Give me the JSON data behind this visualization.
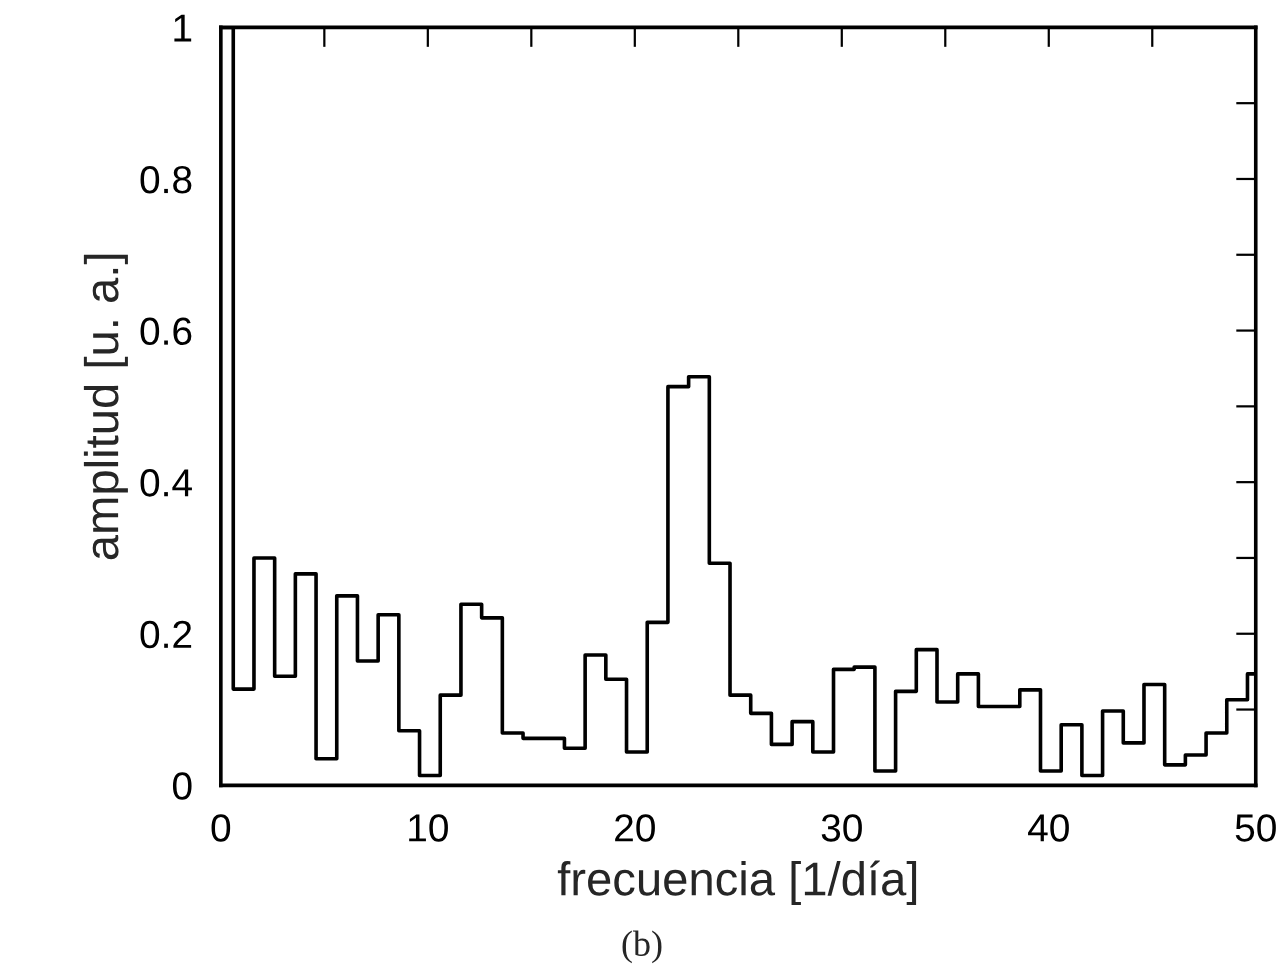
{
  "chart_data": {
    "type": "step",
    "xlabel": "frecuencia [1/día]",
    "ylabel": "amplitud [u. a.]",
    "annotations": [
      "(b)"
    ],
    "x": [
      0,
      0.6,
      1.6,
      2.6,
      3.6,
      4.6,
      5.6,
      6.6,
      7.6,
      8.6,
      9.6,
      10.6,
      11.6,
      12.6,
      13.6,
      14.6,
      15.6,
      16.6,
      17.6,
      18.6,
      19.6,
      20.6,
      21.6,
      22.6,
      23.6,
      24.6,
      25.6,
      26.6,
      27.6,
      28.6,
      29.6,
      30.6,
      31.6,
      32.6,
      33.6,
      34.6,
      35.6,
      36.6,
      37.6,
      38.6,
      39.6,
      40.6,
      41.6,
      42.6,
      43.6,
      44.6,
      45.6,
      46.6,
      47.6,
      48.6,
      49.6,
      50
    ],
    "series": [
      {
        "color": "#000000",
        "values": [
          1.0,
          0.127,
          0.3,
          0.144,
          0.279,
          0.035,
          0.25,
          0.164,
          0.225,
          0.072,
          0.013,
          0.119,
          0.239,
          0.221,
          0.069,
          0.062,
          0.062,
          0.049,
          0.172,
          0.14,
          0.044,
          0.215,
          0.526,
          0.539,
          0.293,
          0.119,
          0.095,
          0.054,
          0.084,
          0.044,
          0.153,
          0.156,
          0.019,
          0.124,
          0.179,
          0.11,
          0.147,
          0.104,
          0.104,
          0.126,
          0.019,
          0.08,
          0.013,
          0.098,
          0.056,
          0.133,
          0.027,
          0.04,
          0.069,
          0.113,
          0.147,
          0.147
        ]
      }
    ],
    "xlim": [
      0,
      50
    ],
    "ylim": [
      0,
      1
    ],
    "xticks": [
      0,
      {
        "value": 5,
        "label": null
      },
      10,
      {
        "value": 15,
        "label": null
      },
      20,
      {
        "value": 25,
        "label": null
      },
      30,
      {
        "value": 35,
        "label": null
      },
      40,
      {
        "value": 45,
        "label": null
      },
      50
    ],
    "yticks": [
      0,
      {
        "value": 0.1,
        "label": null
      },
      0.2,
      {
        "value": 0.3,
        "label": null
      },
      0.4,
      {
        "value": 0.5,
        "label": null
      },
      0.6,
      {
        "value": 0.7,
        "label": null
      },
      0.8,
      {
        "value": 0.9,
        "label": null
      },
      1
    ],
    "grid": false,
    "legend": false,
    "marker": "none",
    "line_style": "solid"
  }
}
